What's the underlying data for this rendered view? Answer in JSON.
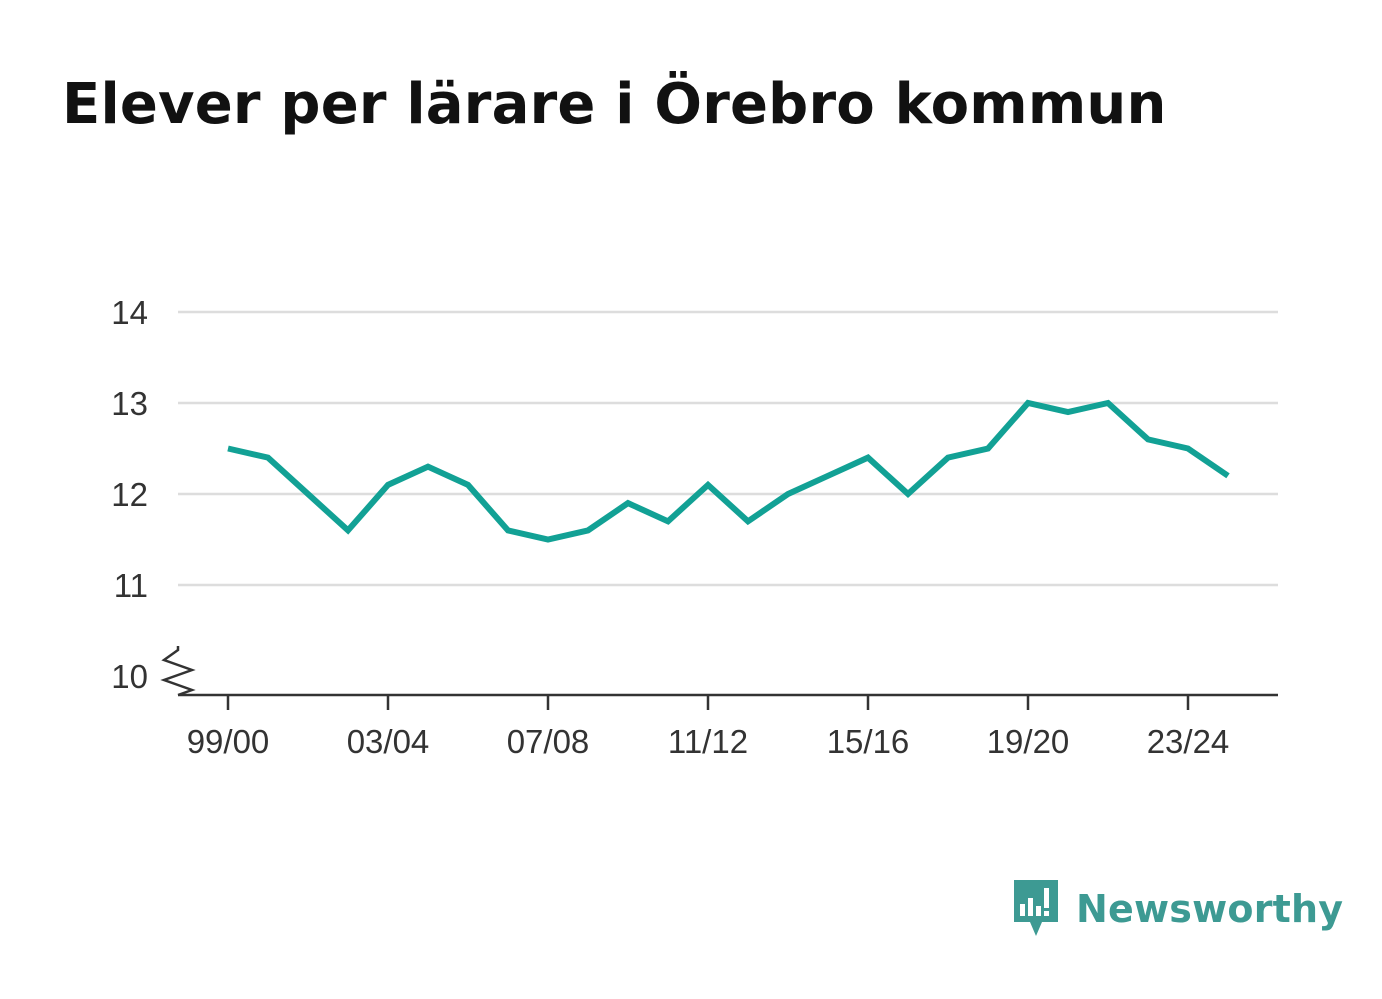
{
  "title": "Elever per lärare i Örebro kommun",
  "brand": {
    "name": "Newsworthy",
    "color": "#3d9a93"
  },
  "chart_data": {
    "type": "line",
    "title": "Elever per lärare i Örebro kommun",
    "xlabel": "",
    "ylabel": "",
    "x": [
      "99/00",
      "00/01",
      "01/02",
      "02/03",
      "03/04",
      "04/05",
      "05/06",
      "06/07",
      "07/08",
      "08/09",
      "09/10",
      "10/11",
      "11/12",
      "12/13",
      "13/14",
      "14/15",
      "15/16",
      "16/17",
      "17/18",
      "18/19",
      "19/20",
      "20/21",
      "21/22",
      "22/23",
      "23/24",
      "24/25"
    ],
    "series": [
      {
        "values": [
          12.5,
          12.4,
          12.0,
          11.6,
          12.1,
          12.3,
          12.1,
          11.6,
          11.5,
          11.6,
          11.9,
          11.7,
          12.1,
          11.7,
          12.0,
          12.2,
          12.4,
          12.0,
          12.4,
          12.5,
          13.0,
          12.9,
          13.0,
          12.6,
          12.5,
          12.2
        ],
        "color": "#12a195"
      }
    ],
    "x_tick_labels": [
      "99/00",
      "03/04",
      "07/08",
      "11/12",
      "15/16",
      "19/20",
      "23/24"
    ],
    "y_tick_labels": [
      "10",
      "11",
      "12",
      "13",
      "14"
    ],
    "ylim": [
      10,
      14
    ],
    "y_axis_break": true,
    "grid": true,
    "legend": "none"
  }
}
